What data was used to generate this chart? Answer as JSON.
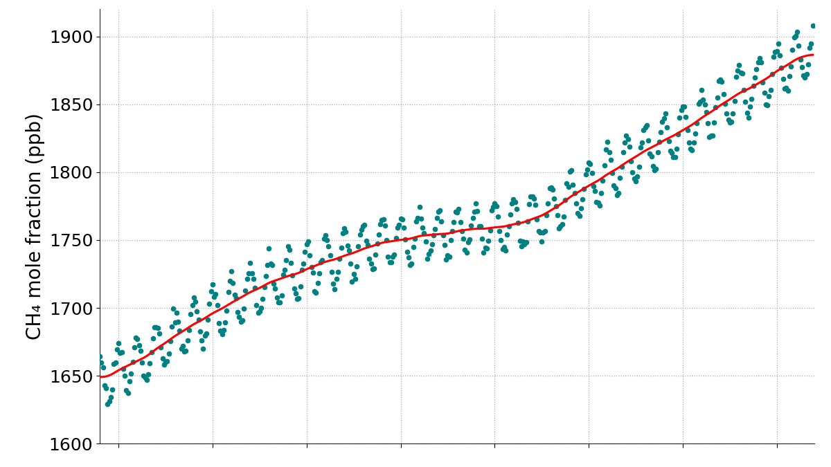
{
  "ylabel": "CH₄ mole fraction (ppb)",
  "xlabel": "",
  "ylim": [
    1600,
    1920
  ],
  "xlim": [
    1984.0,
    2022.0
  ],
  "yticks": [
    1600,
    1650,
    1700,
    1750,
    1800,
    1850,
    1900
  ],
  "dot_color": "#008080",
  "line_color": "#ff0000",
  "background_color": "#ffffff",
  "grid_color": "#999999",
  "dot_size": 4.5,
  "line_width": 2.2,
  "ylabel_fontsize": 20,
  "tick_fontsize": 18,
  "seasonal_amplitude": 18,
  "noise_std": 2.5
}
